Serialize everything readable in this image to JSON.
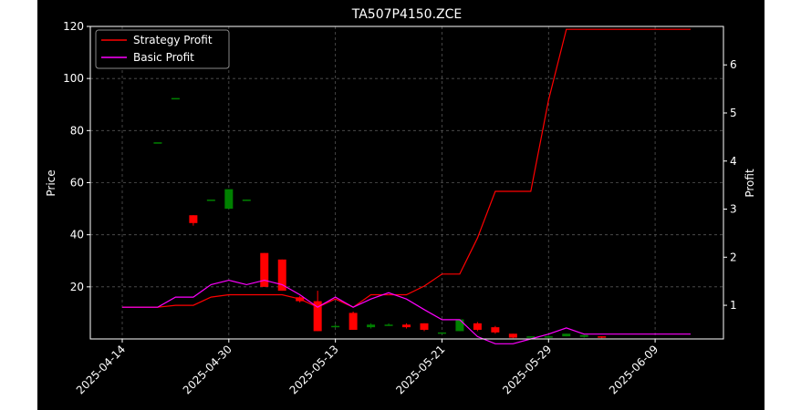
{
  "chart_data": {
    "type": "candlestick",
    "title": "TA507P4150.ZCE",
    "xlabel": "",
    "ylabel": "Price",
    "ylabel_right": "Profit",
    "xlim": [
      "2025-04-14",
      "2025-06-11"
    ],
    "ylim": [
      0,
      120
    ],
    "ylim_right": [
      0.3,
      6.8
    ],
    "x_ticks": [
      "2025-04-14",
      "2025-04-30",
      "2025-05-13",
      "2025-05-21",
      "2025-05-29",
      "2025-06-09"
    ],
    "y_ticks": [
      20,
      40,
      60,
      80,
      100,
      120
    ],
    "y_ticks_right": [
      1,
      2,
      3,
      4,
      5,
      6
    ],
    "grid": true,
    "legend_position": "upper-left",
    "colors": {
      "background": "#000000",
      "figure_background": "#ffffff",
      "up_candle": "#008000",
      "down_candle": "#ff0000",
      "strategy_line": "#ff0000",
      "basic_line": "#ff00ff",
      "grid": "#555555",
      "text": "#ffffff"
    },
    "candles": [
      {
        "i": 2,
        "open": 75.5,
        "close": 75.5,
        "high": 75.5,
        "low": 75.5
      },
      {
        "i": 3,
        "open": 92.5,
        "close": 92.5,
        "high": 92.5,
        "low": 92.5
      },
      {
        "i": 4,
        "open": 47.5,
        "close": 44.5,
        "high": 47.5,
        "low": 43.5
      },
      {
        "i": 5,
        "open": 53.5,
        "close": 53.5,
        "high": 53.5,
        "low": 53.5
      },
      {
        "i": 6,
        "open": 50.0,
        "close": 57.5,
        "high": 57.5,
        "low": 50.0
      },
      {
        "i": 7,
        "open": 53.5,
        "close": 53.5,
        "high": 53.5,
        "low": 53.0
      },
      {
        "i": 8,
        "open": 33.0,
        "close": 20.0,
        "high": 33.0,
        "low": 20.0
      },
      {
        "i": 9,
        "open": 30.5,
        "close": 18.5,
        "high": 30.5,
        "low": 18.5
      },
      {
        "i": 10,
        "open": 16.0,
        "close": 14.5,
        "high": 16.5,
        "low": 14.0
      },
      {
        "i": 11,
        "open": 14.5,
        "close": 3.0,
        "high": 18.5,
        "low": 3.0
      },
      {
        "i": 12,
        "open": 4.5,
        "close": 5.0,
        "high": 5.5,
        "low": 4.5
      },
      {
        "i": 13,
        "open": 10.0,
        "close": 3.5,
        "high": 10.5,
        "low": 3.5
      },
      {
        "i": 14,
        "open": 4.5,
        "close": 5.5,
        "high": 6.0,
        "low": 4.0
      },
      {
        "i": 15,
        "open": 5.0,
        "close": 5.5,
        "high": 6.0,
        "low": 5.0
      },
      {
        "i": 16,
        "open": 5.5,
        "close": 4.5,
        "high": 6.0,
        "low": 4.0
      },
      {
        "i": 17,
        "open": 6.0,
        "close": 3.5,
        "high": 6.0,
        "low": 3.0
      },
      {
        "i": 18,
        "open": 2.0,
        "close": 2.5,
        "high": 2.5,
        "low": 2.0
      },
      {
        "i": 19,
        "open": 3.0,
        "close": 7.5,
        "high": 7.5,
        "low": 3.0
      },
      {
        "i": 20,
        "open": 6.0,
        "close": 3.5,
        "high": 6.5,
        "low": 3.0
      },
      {
        "i": 21,
        "open": 4.5,
        "close": 2.5,
        "high": 5.0,
        "low": 2.0
      },
      {
        "i": 22,
        "open": 2.0,
        "close": 0.5,
        "high": 2.0,
        "low": 0.3
      },
      {
        "i": 23,
        "open": 0.5,
        "close": 1.0,
        "high": 1.0,
        "low": 0.5
      },
      {
        "i": 24,
        "open": 0.8,
        "close": 1.0,
        "high": 1.2,
        "low": 0.5
      },
      {
        "i": 25,
        "open": 1.0,
        "close": 2.0,
        "high": 2.0,
        "low": 1.0
      },
      {
        "i": 26,
        "open": 0.8,
        "close": 1.5,
        "high": 1.5,
        "low": 0.5
      },
      {
        "i": 27,
        "open": 1.0,
        "close": 0.5,
        "high": 1.0,
        "low": 0.3
      }
    ],
    "series": [
      {
        "name": "Strategy Profit",
        "axis": "right",
        "values": [
          0.96,
          0.96,
          0.96,
          1.0,
          1.0,
          1.17,
          1.22,
          1.22,
          1.22,
          1.22,
          1.13,
          0.96,
          1.13,
          0.96,
          1.22,
          1.22,
          1.22,
          1.4,
          1.65,
          1.65,
          2.4,
          3.37,
          3.37,
          3.37,
          5.27,
          6.74,
          6.74,
          6.74,
          6.74,
          6.74,
          6.74,
          6.74,
          6.74
        ]
      },
      {
        "name": "Basic Profit",
        "axis": "right",
        "values": [
          0.96,
          0.96,
          0.96,
          1.17,
          1.17,
          1.43,
          1.52,
          1.43,
          1.52,
          1.43,
          1.22,
          0.96,
          1.17,
          0.96,
          1.13,
          1.26,
          1.13,
          0.91,
          0.7,
          0.7,
          0.35,
          0.2,
          0.2,
          0.3,
          0.4,
          0.53,
          0.4,
          0.4,
          0.4,
          0.4,
          0.4,
          0.4,
          0.4
        ]
      }
    ]
  }
}
